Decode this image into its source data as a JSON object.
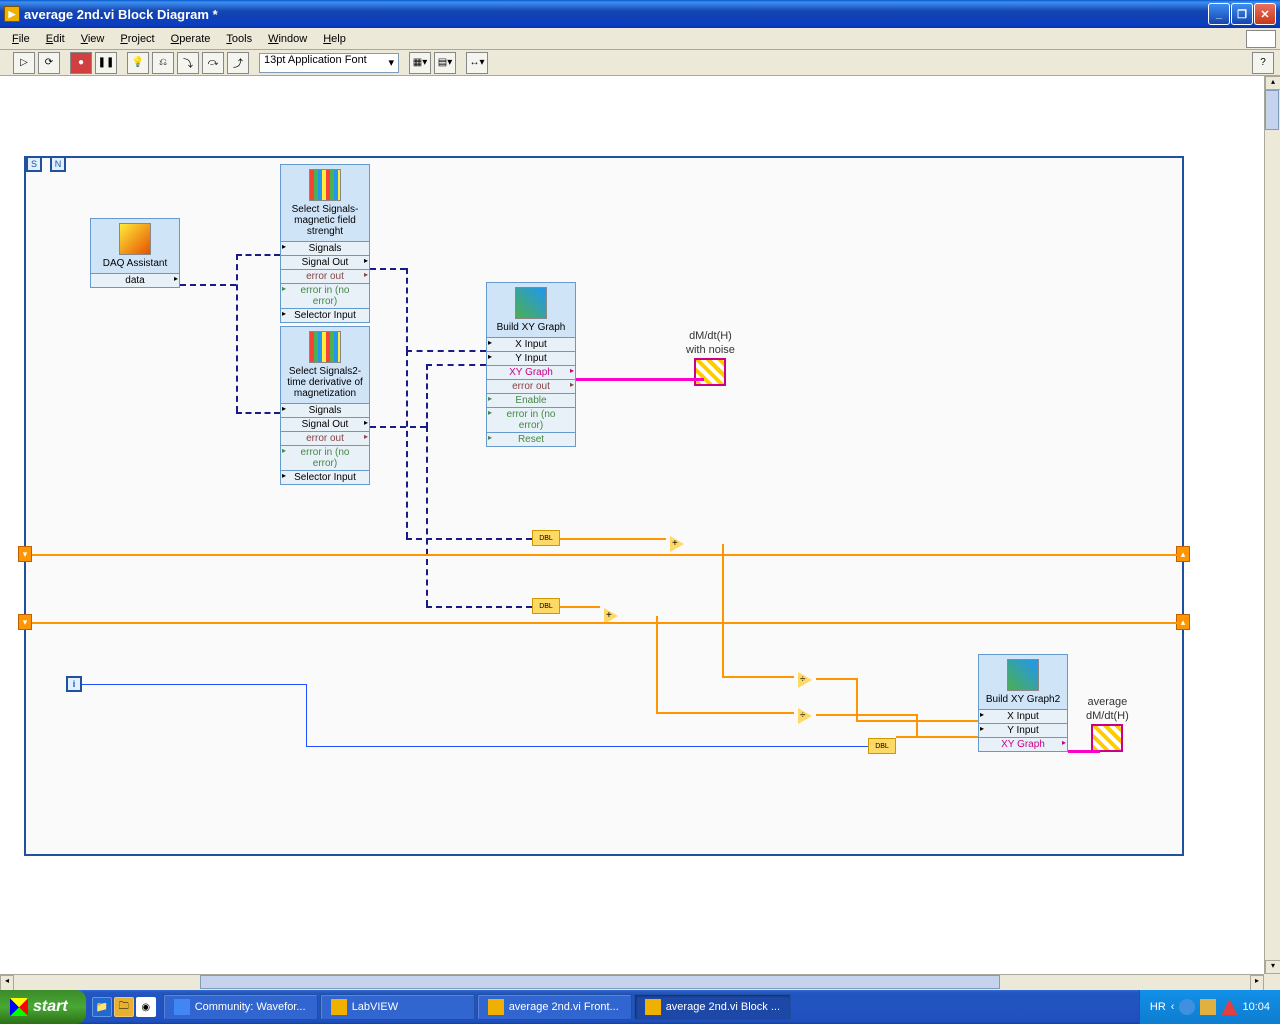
{
  "window": {
    "title": "average 2nd.vi Block Diagram *"
  },
  "menu": {
    "items": [
      "File",
      "Edit",
      "View",
      "Project",
      "Operate",
      "Tools",
      "Window",
      "Help"
    ]
  },
  "toolbar": {
    "font": "13pt Application Font"
  },
  "diagram": {
    "loop": {
      "n_label": "N",
      "s_label": "S",
      "i_label": "i"
    },
    "daq": {
      "title": "DAQ Assistant",
      "rows": [
        "data"
      ]
    },
    "sel1": {
      "title": "Select Signals- magnetic field strenght",
      "rows": [
        "Signals",
        "Signal Out",
        "error out",
        "error in (no error)",
        "Selector Input"
      ]
    },
    "sel2": {
      "title": "Select Signals2- time derivative of magnetization",
      "rows": [
        "Signals",
        "Signal Out",
        "error out",
        "error in (no error)",
        "Selector Input"
      ]
    },
    "build1": {
      "title": "Build XY Graph",
      "rows": [
        "X Input",
        "Y Input",
        "XY Graph",
        "error out",
        "Enable",
        "error in (no error)",
        "Reset"
      ]
    },
    "build2": {
      "title": "Build XY Graph2",
      "rows": [
        "X Input",
        "Y Input",
        "XY Graph"
      ]
    },
    "graph1": {
      "line1": "dM/dt(H)",
      "line2": "with noise"
    },
    "graph2": {
      "line1": "average",
      "line2": "dM/dt(H)"
    },
    "todbl": "DBL",
    "colors": {
      "dynamic_wire": "#1a1a8a",
      "double_wire": "#ff9500",
      "int_wire": "#2050ff",
      "pink_wire": "#ff00cc",
      "express_bg": "#d0e4f8",
      "express_border": "#6699cc",
      "loop_border": "#2050a0"
    }
  },
  "taskbar": {
    "start": "start",
    "items": [
      {
        "label": "Community: Wavefor...",
        "active": false,
        "color": "#4285f4"
      },
      {
        "label": "LabVIEW",
        "active": false,
        "color": "#f0b000"
      },
      {
        "label": "average 2nd.vi Front...",
        "active": false,
        "color": "#f0b000"
      },
      {
        "label": "average 2nd.vi Block ...",
        "active": true,
        "color": "#f0b000"
      }
    ],
    "tray": {
      "lang": "HR",
      "time": "10:04"
    }
  }
}
